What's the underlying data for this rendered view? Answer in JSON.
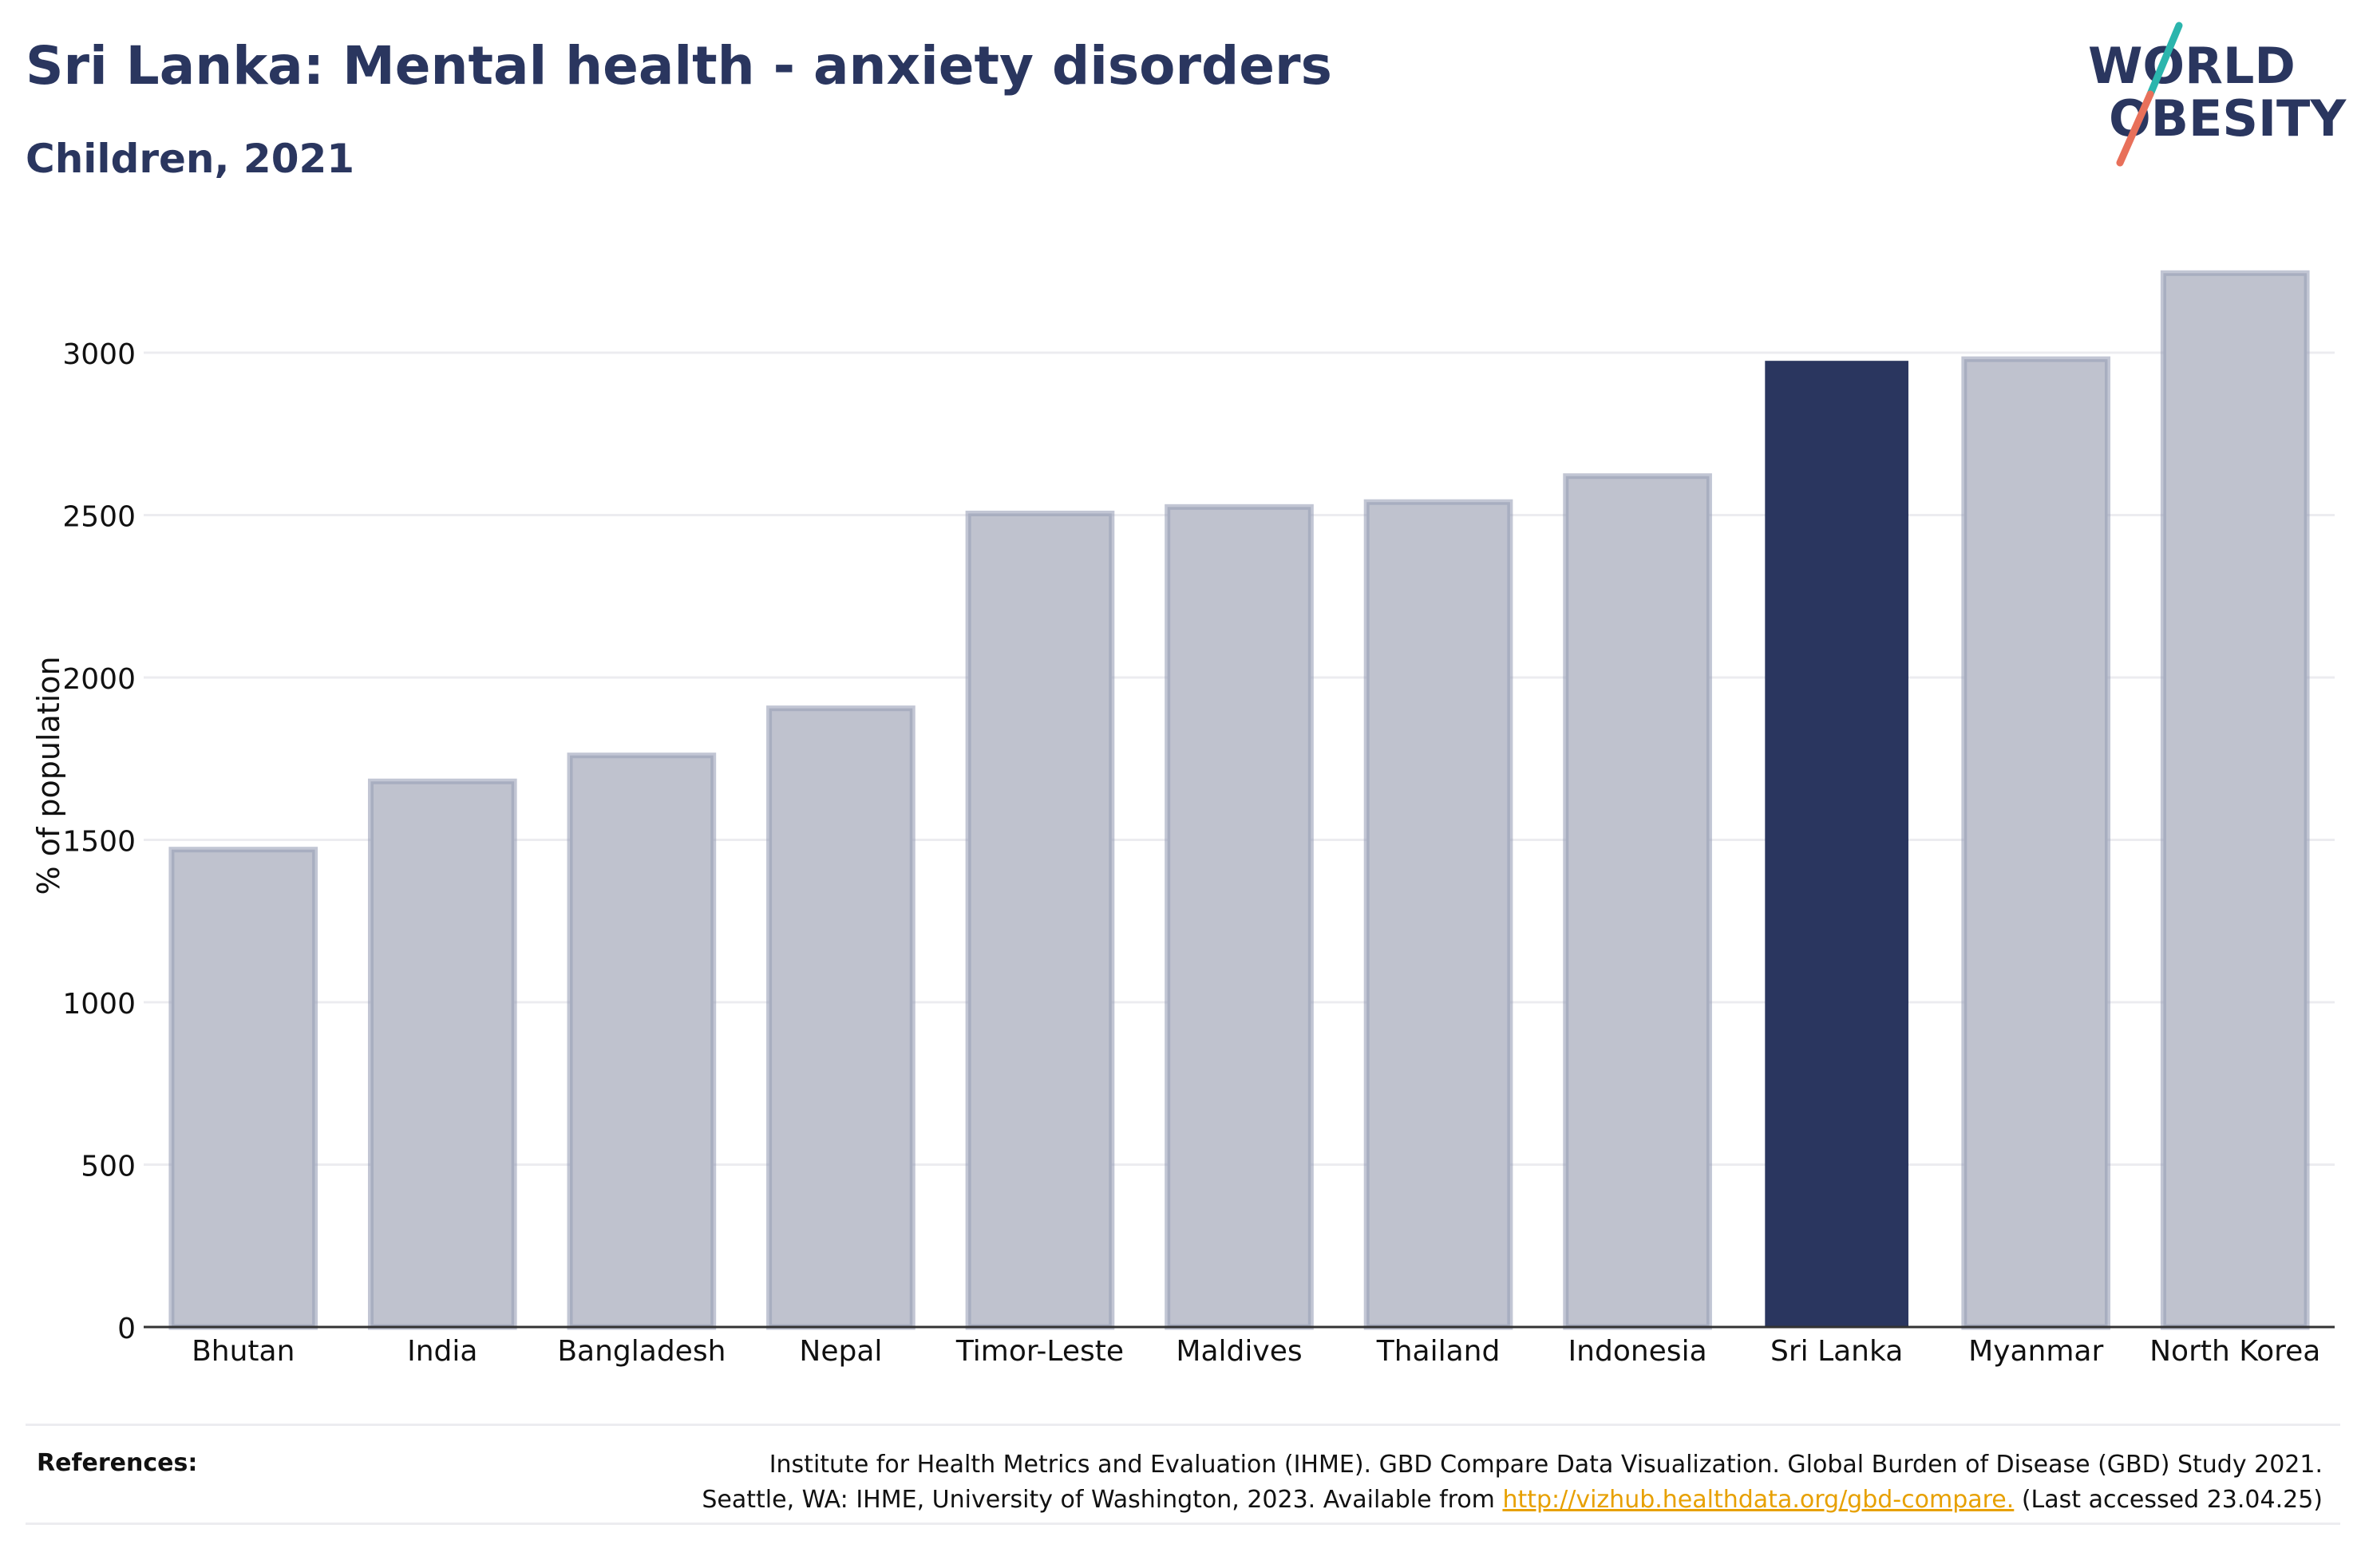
{
  "header": {
    "title": "Sri Lanka: Mental health - anxiety disorders",
    "subtitle": "Children, 2021"
  },
  "logo": {
    "line1": "WORLD",
    "line2": "OBESITY",
    "text_color": "#2a365f",
    "slash_top_color": "#2bb5ad",
    "slash_bottom_color": "#e8705a"
  },
  "colors": {
    "highlight_bar": "#2a365f",
    "other_bar_fill": "#bfc2ce",
    "other_bar_border": "#9aa0b8",
    "grid": "#ececf0",
    "axis": "#333333",
    "text": "#111111",
    "link": "#e7a000"
  },
  "chart_data": {
    "type": "bar",
    "title": "Sri Lanka: Mental health - anxiety disorders",
    "subtitle": "Children, 2021",
    "xlabel": "",
    "ylabel": "% of population",
    "categories": [
      "Bhutan",
      "India",
      "Bangladesh",
      "Nepal",
      "Timor-Leste",
      "Maldives",
      "Thailand",
      "Indonesia",
      "Sri Lanka",
      "Myanmar",
      "North Korea"
    ],
    "values": [
      1470,
      1680,
      1760,
      1905,
      2505,
      2525,
      2540,
      2620,
      2975,
      2980,
      3245
    ],
    "highlight": "Sri Lanka",
    "ylim": [
      0,
      3300
    ],
    "yticks": [
      0,
      500,
      1000,
      1500,
      2000,
      2500,
      3000
    ],
    "grid": true
  },
  "references": {
    "label": "References:",
    "line1": "Institute for Health Metrics and Evaluation (IHME). GBD Compare Data Visualization. Global Burden of Disease (GBD) Study 2021.",
    "line2_before": "Seattle, WA: IHME, University of Washington, 2023. Available from ",
    "link": "http://vizhub.healthdata.org/gbd-compare.",
    "line2_after": " (Last accessed 23.04.25)"
  }
}
